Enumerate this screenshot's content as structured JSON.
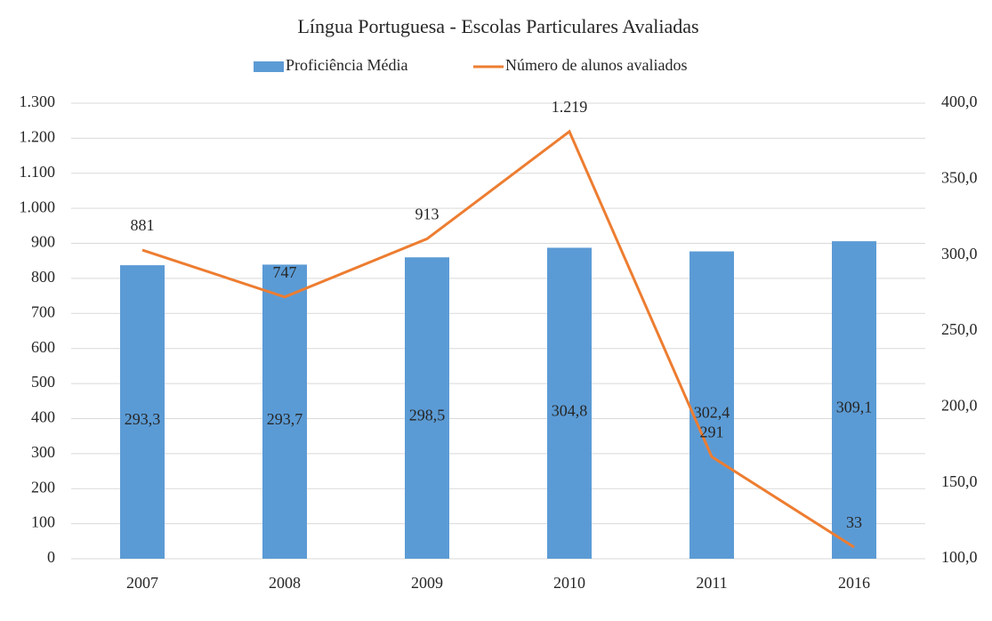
{
  "chart_data": {
    "type": "bar_line",
    "title": "Língua Portuguesa - Escolas Particulares Avaliadas",
    "categories": [
      "2007",
      "2008",
      "2009",
      "2010",
      "2011",
      "2016"
    ],
    "series": [
      {
        "name": "Proficiência Média",
        "type": "bar",
        "axis": "y2",
        "color": "#5b9bd5",
        "values": [
          293.3,
          293.7,
          298.5,
          304.8,
          302.4,
          309.1
        ],
        "value_labels": [
          "293,3",
          "293,7",
          "298,5",
          "304,8",
          "302,4",
          "309,1"
        ]
      },
      {
        "name": "Número de alunos avaliados",
        "type": "line",
        "axis": "y",
        "color": "#ed7d31",
        "values": [
          881,
          747,
          913,
          1219,
          291,
          33
        ],
        "value_labels": [
          "881",
          "747",
          "913",
          "1.219",
          "291",
          "33"
        ]
      }
    ],
    "ylim": [
      0,
      1300
    ],
    "yticks": [
      0,
      100,
      200,
      300,
      400,
      500,
      600,
      700,
      800,
      900,
      {
        "value": 1000,
        "label": "1.000"
      },
      {
        "value": 1100,
        "label": "1.100"
      },
      {
        "value": 1200,
        "label": "1.200"
      },
      {
        "value": 1300,
        "label": "1.300"
      }
    ],
    "y2lim": [
      100,
      400
    ],
    "y2ticks": [
      {
        "value": 100,
        "label": "100,0"
      },
      {
        "value": 150,
        "label": "150,0"
      },
      {
        "value": 200,
        "label": "200,0"
      },
      {
        "value": 250,
        "label": "250,0"
      },
      {
        "value": 300,
        "label": "300,0"
      },
      {
        "value": 350,
        "label": "350,0"
      },
      {
        "value": 400,
        "label": "400,0"
      }
    ],
    "grid": true,
    "legend": "top"
  }
}
